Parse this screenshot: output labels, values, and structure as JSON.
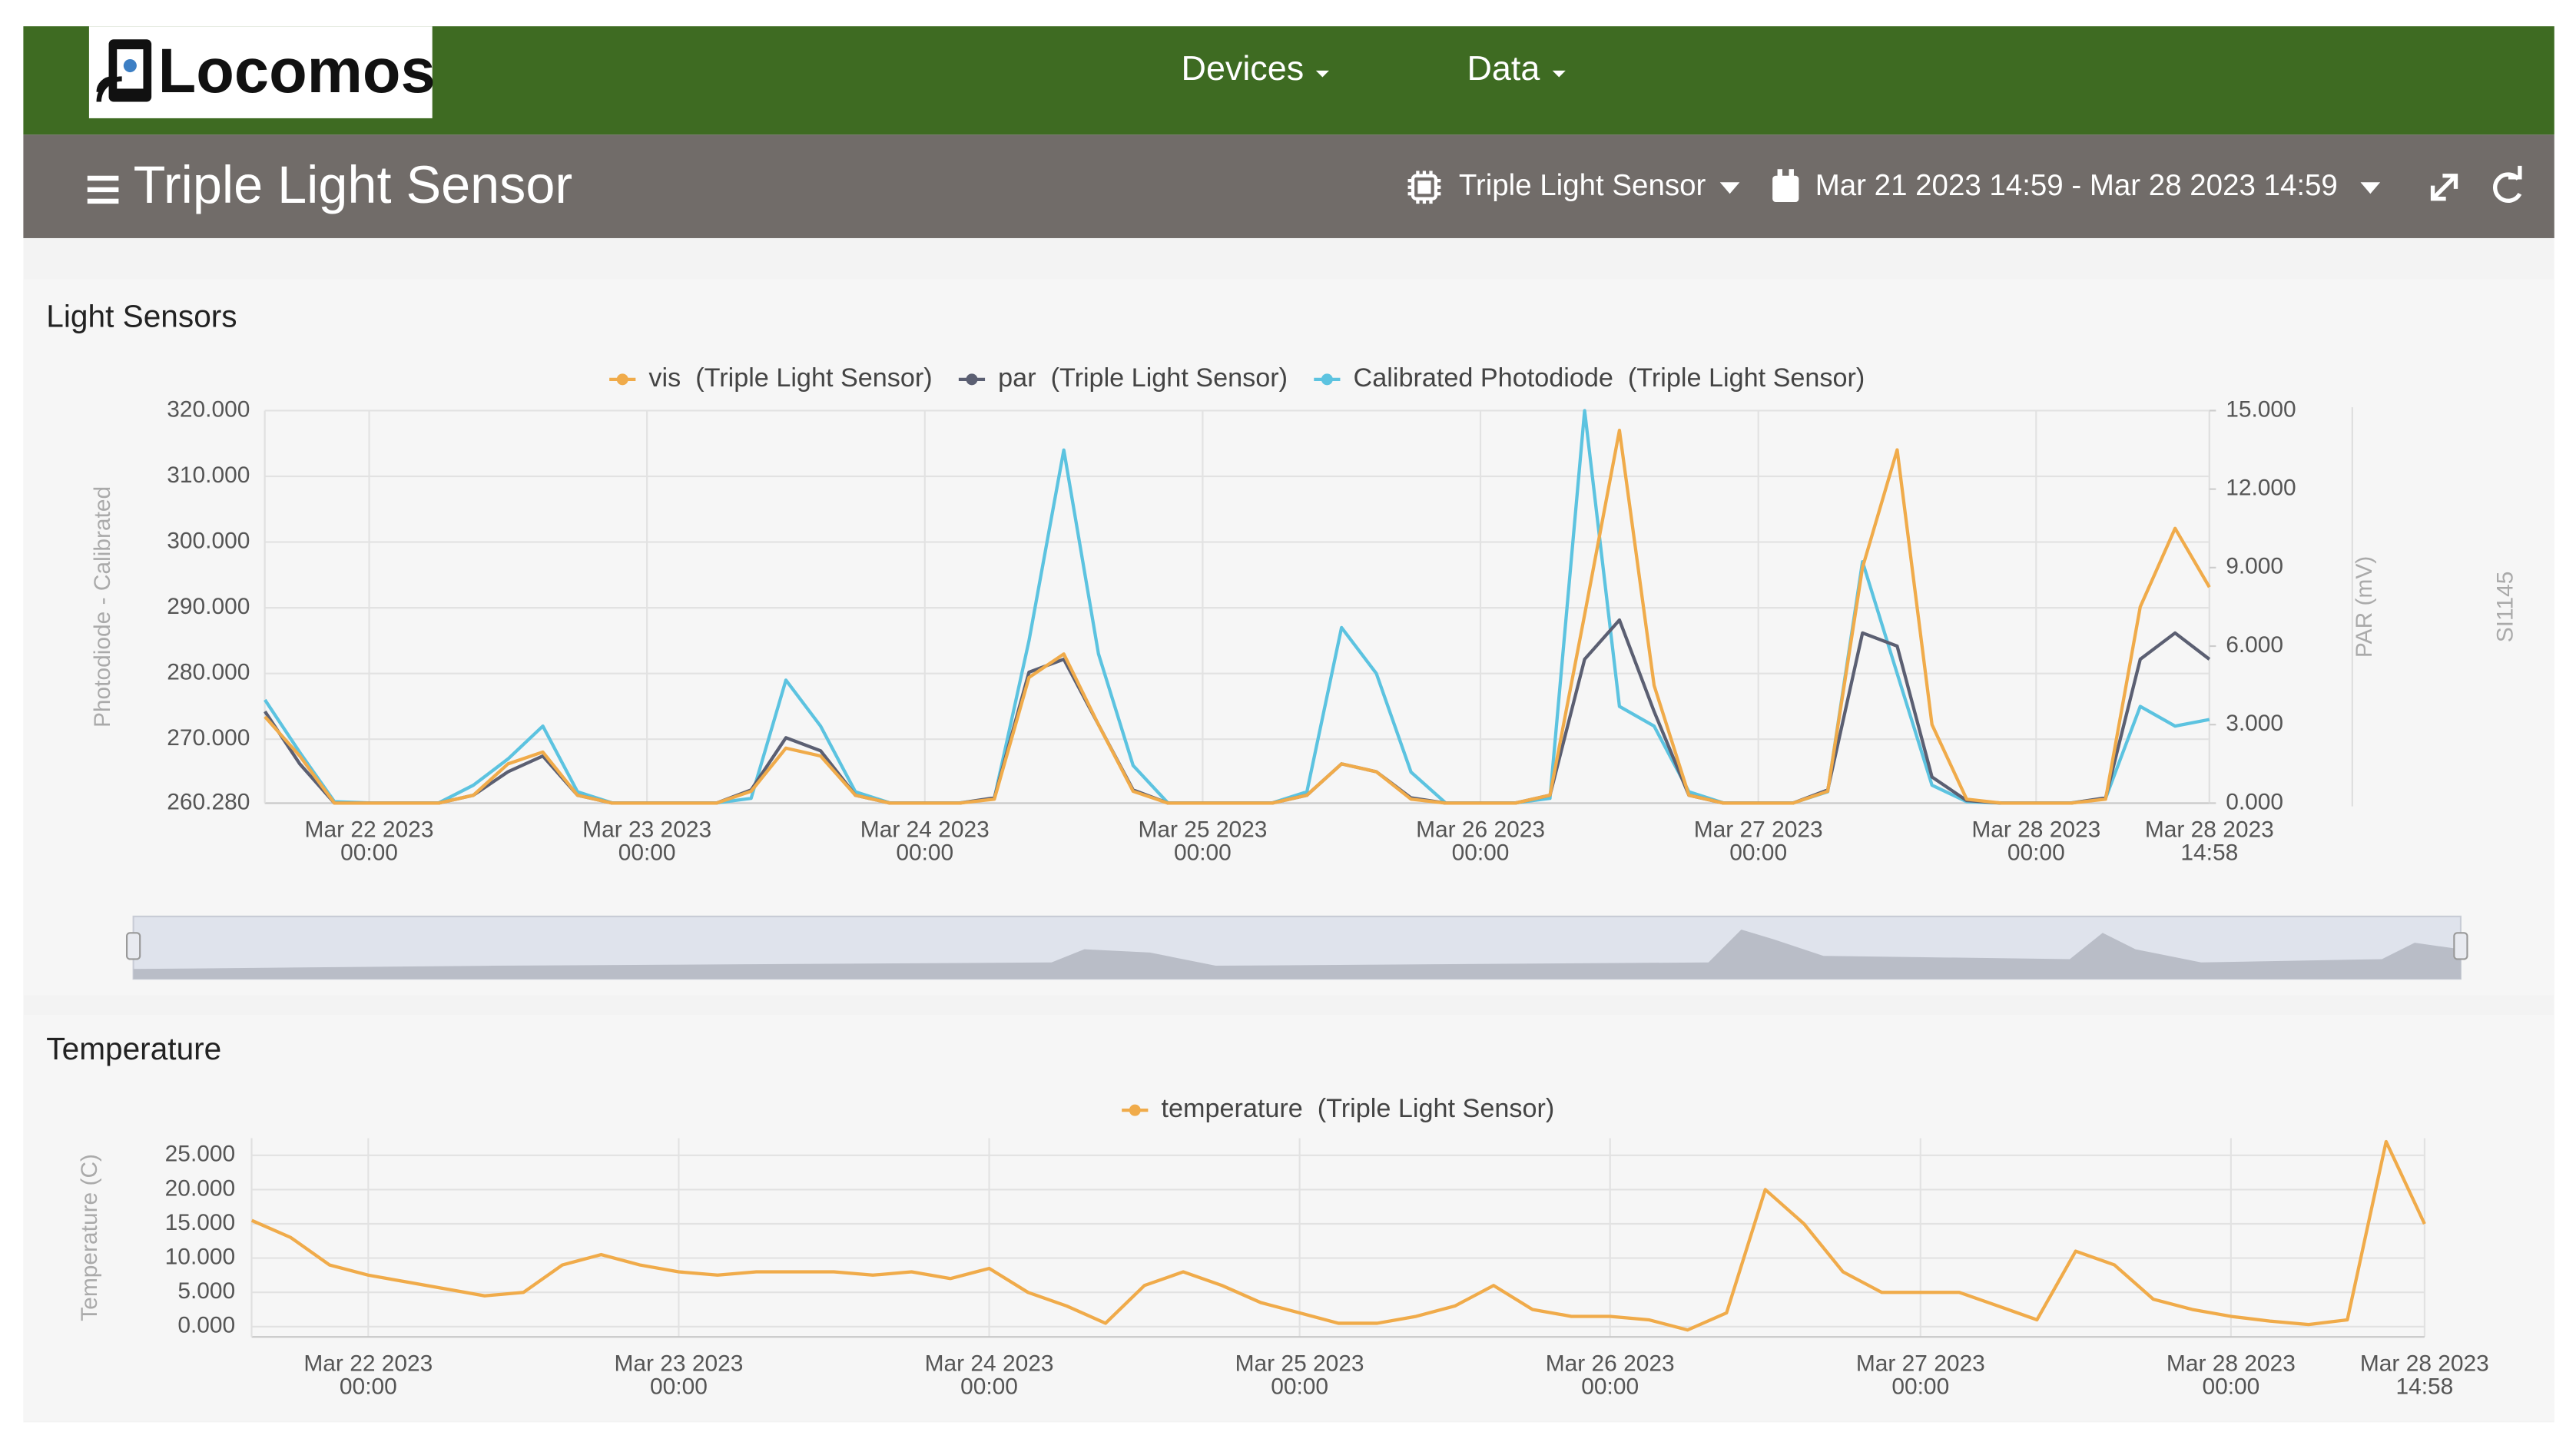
{
  "header": {
    "logo": "Locomos",
    "nav": [
      "Devices",
      "Data"
    ]
  },
  "toolbar": {
    "title": "Triple Light Sensor",
    "device": "Triple Light Sensor",
    "range": "Mar 21 2023 14:59 - Mar 28 2023 14:59"
  },
  "chart_data": [
    {
      "type": "line",
      "title": "Light Sensors",
      "ylabel": "Photodiode - Calibrated",
      "y2label": "PAR (mV)",
      "y3label": "SI1145",
      "grid": true,
      "x": [
        "2023-03-21T15:00",
        "2023-03-21T18:00",
        "2023-03-21T21:00",
        "2023-03-22T00:00",
        "2023-03-22T03:00",
        "2023-03-22T06:00",
        "2023-03-22T09:00",
        "2023-03-22T12:00",
        "2023-03-22T15:00",
        "2023-03-22T18:00",
        "2023-03-22T21:00",
        "2023-03-23T00:00",
        "2023-03-23T03:00",
        "2023-03-23T06:00",
        "2023-03-23T09:00",
        "2023-03-23T12:00",
        "2023-03-23T15:00",
        "2023-03-23T18:00",
        "2023-03-23T21:00",
        "2023-03-24T00:00",
        "2023-03-24T03:00",
        "2023-03-24T06:00",
        "2023-03-24T09:00",
        "2023-03-24T12:00",
        "2023-03-24T15:00",
        "2023-03-24T18:00",
        "2023-03-24T21:00",
        "2023-03-25T00:00",
        "2023-03-25T03:00",
        "2023-03-25T06:00",
        "2023-03-25T09:00",
        "2023-03-25T12:00",
        "2023-03-25T15:00",
        "2023-03-25T18:00",
        "2023-03-25T21:00",
        "2023-03-26T00:00",
        "2023-03-26T03:00",
        "2023-03-26T06:00",
        "2023-03-26T09:00",
        "2023-03-26T12:00",
        "2023-03-26T15:00",
        "2023-03-26T18:00",
        "2023-03-26T21:00",
        "2023-03-27T00:00",
        "2023-03-27T03:00",
        "2023-03-27T06:00",
        "2023-03-27T09:00",
        "2023-03-27T12:00",
        "2023-03-27T15:00",
        "2023-03-27T18:00",
        "2023-03-27T21:00",
        "2023-03-28T00:00",
        "2023-03-28T03:00",
        "2023-03-28T06:00",
        "2023-03-28T09:00",
        "2023-03-28T12:00",
        "2023-03-28T14:58"
      ],
      "xlim": [
        "2023-03-21T14:59",
        "2023-03-28T14:58"
      ],
      "xticks": [
        {
          "value": "2023-03-22T00:00",
          "label": [
            "Mar 22 2023",
            "00:00"
          ]
        },
        {
          "value": "2023-03-23T00:00",
          "label": [
            "Mar 23 2023",
            "00:00"
          ]
        },
        {
          "value": "2023-03-24T00:00",
          "label": [
            "Mar 24 2023",
            "00:00"
          ]
        },
        {
          "value": "2023-03-25T00:00",
          "label": [
            "Mar 25 2023",
            "00:00"
          ]
        },
        {
          "value": "2023-03-26T00:00",
          "label": [
            "Mar 26 2023",
            "00:00"
          ]
        },
        {
          "value": "2023-03-27T00:00",
          "label": [
            "Mar 27 2023",
            "00:00"
          ]
        },
        {
          "value": "2023-03-28T00:00",
          "label": [
            "Mar 28 2023",
            "00:00"
          ]
        },
        {
          "value": "2023-03-28T14:58",
          "label": [
            "Mar 28 2023",
            "14:58"
          ]
        }
      ],
      "ylim": [
        260.28,
        320
      ],
      "yticks": [
        {
          "value": 260.28,
          "label": "260.280"
        },
        {
          "value": 270,
          "label": "270.000"
        },
        {
          "value": 280,
          "label": "280.000"
        },
        {
          "value": 290,
          "label": "290.000"
        },
        {
          "value": 300,
          "label": "300.000"
        },
        {
          "value": 310,
          "label": "310.000"
        },
        {
          "value": 320,
          "label": "320.000"
        }
      ],
      "y2lim": [
        0,
        15
      ],
      "y2ticks": [
        {
          "value": 0,
          "label": "0.000"
        },
        {
          "value": 3,
          "label": "3.000"
        },
        {
          "value": 6,
          "label": "6.000"
        },
        {
          "value": 9,
          "label": "9.000"
        },
        {
          "value": 12,
          "label": "12.000"
        },
        {
          "value": 15,
          "label": "15.000"
        }
      ],
      "y3lim": [
        0,
        1000
      ],
      "series": [
        {
          "name": "vis  (Triple Light Sensor)",
          "color": "#f0ab4a",
          "axis": "y3",
          "values": [
            220,
            120,
            0,
            0,
            0,
            0,
            20,
            100,
            130,
            20,
            0,
            0,
            0,
            0,
            30,
            140,
            120,
            20,
            0,
            0,
            0,
            10,
            320,
            380,
            200,
            30,
            0,
            0,
            0,
            0,
            20,
            100,
            80,
            10,
            0,
            0,
            0,
            20,
            480,
            950,
            300,
            20,
            0,
            0,
            0,
            30,
            600,
            900,
            200,
            10,
            0,
            0,
            0,
            10,
            500,
            700,
            550
          ]
        },
        {
          "name": "par  (Triple Light Sensor)",
          "color": "#5b5f72",
          "axis": "y2",
          "values": [
            3.5,
            1.5,
            0,
            0,
            0,
            0,
            0.3,
            1.2,
            1.8,
            0.3,
            0,
            0,
            0,
            0,
            0.5,
            2.5,
            2.0,
            0.3,
            0,
            0,
            0,
            0.2,
            5.0,
            5.5,
            3.0,
            0.5,
            0,
            0,
            0,
            0,
            0.3,
            1.5,
            1.2,
            0.2,
            0,
            0,
            0,
            0.3,
            5.5,
            7.0,
            3.5,
            0.3,
            0,
            0,
            0,
            0.5,
            6.5,
            6.0,
            1.0,
            0.1,
            0,
            0,
            0,
            0.2,
            5.5,
            6.5,
            5.5
          ]
        },
        {
          "name": "Calibrated Photodiode  (Triple Light Sensor)",
          "color": "#5cc3e0",
          "values": [
            276,
            268,
            260.5,
            260.3,
            260.3,
            260.3,
            263,
            267,
            272,
            262,
            260.3,
            260.3,
            260.3,
            260.3,
            261,
            279,
            272,
            262,
            260.3,
            260.3,
            260.3,
            261,
            285,
            314,
            283,
            266,
            260.3,
            260.3,
            260.3,
            260.3,
            262,
            287,
            280,
            265,
            260.3,
            260.3,
            260.3,
            261,
            320,
            275,
            272,
            262,
            260.3,
            260.3,
            260.3,
            262,
            297,
            280,
            263,
            260.5,
            260.3,
            260.3,
            260.3,
            261,
            275,
            272,
            273
          ]
        }
      ]
    },
    {
      "type": "line",
      "title": "Temperature",
      "ylabel": "Temperature (C)",
      "grid": true,
      "x": [
        "2023-03-21T15:00",
        "2023-03-21T18:00",
        "2023-03-21T21:00",
        "2023-03-22T00:00",
        "2023-03-22T03:00",
        "2023-03-22T06:00",
        "2023-03-22T09:00",
        "2023-03-22T12:00",
        "2023-03-22T15:00",
        "2023-03-22T18:00",
        "2023-03-22T21:00",
        "2023-03-23T00:00",
        "2023-03-23T03:00",
        "2023-03-23T06:00",
        "2023-03-23T09:00",
        "2023-03-23T12:00",
        "2023-03-23T15:00",
        "2023-03-23T18:00",
        "2023-03-23T21:00",
        "2023-03-24T00:00",
        "2023-03-24T03:00",
        "2023-03-24T06:00",
        "2023-03-24T09:00",
        "2023-03-24T12:00",
        "2023-03-24T15:00",
        "2023-03-24T18:00",
        "2023-03-24T21:00",
        "2023-03-25T00:00",
        "2023-03-25T03:00",
        "2023-03-25T06:00",
        "2023-03-25T09:00",
        "2023-03-25T12:00",
        "2023-03-25T15:00",
        "2023-03-25T18:00",
        "2023-03-25T21:00",
        "2023-03-26T00:00",
        "2023-03-26T03:00",
        "2023-03-26T06:00",
        "2023-03-26T09:00",
        "2023-03-26T12:00",
        "2023-03-26T15:00",
        "2023-03-26T18:00",
        "2023-03-26T21:00",
        "2023-03-27T00:00",
        "2023-03-27T03:00",
        "2023-03-27T06:00",
        "2023-03-27T09:00",
        "2023-03-27T12:00",
        "2023-03-27T15:00",
        "2023-03-27T18:00",
        "2023-03-27T21:00",
        "2023-03-28T00:00",
        "2023-03-28T03:00",
        "2023-03-28T06:00",
        "2023-03-28T09:00",
        "2023-03-28T12:00",
        "2023-03-28T14:58"
      ],
      "xlim": [
        "2023-03-21T14:59",
        "2023-03-28T14:58"
      ],
      "xticks": [
        {
          "value": "2023-03-22T00:00",
          "label": [
            "Mar 22 2023",
            "00:00"
          ]
        },
        {
          "value": "2023-03-23T00:00",
          "label": [
            "Mar 23 2023",
            "00:00"
          ]
        },
        {
          "value": "2023-03-24T00:00",
          "label": [
            "Mar 24 2023",
            "00:00"
          ]
        },
        {
          "value": "2023-03-25T00:00",
          "label": [
            "Mar 25 2023",
            "00:00"
          ]
        },
        {
          "value": "2023-03-26T00:00",
          "label": [
            "Mar 26 2023",
            "00:00"
          ]
        },
        {
          "value": "2023-03-27T00:00",
          "label": [
            "Mar 27 2023",
            "00:00"
          ]
        },
        {
          "value": "2023-03-28T00:00",
          "label": [
            "Mar 28 2023",
            "00:00"
          ]
        },
        {
          "value": "2023-03-28T14:58",
          "label": [
            "Mar 28 2023",
            "14:58"
          ]
        }
      ],
      "ylim": [
        -1.5,
        27.5
      ],
      "yticks": [
        {
          "value": 0,
          "label": "0.000"
        },
        {
          "value": 5,
          "label": "5.000"
        },
        {
          "value": 10,
          "label": "10.000"
        },
        {
          "value": 15,
          "label": "15.000"
        },
        {
          "value": 20,
          "label": "20.000"
        },
        {
          "value": 25,
          "label": "25.000"
        }
      ],
      "series": [
        {
          "name": "temperature  (Triple Light Sensor)",
          "color": "#f0ab4a",
          "values": [
            15.5,
            13,
            9,
            7.5,
            6.5,
            5.5,
            4.5,
            5,
            9,
            10.5,
            9,
            8,
            7.5,
            8,
            8,
            8,
            7.5,
            8,
            7,
            8.5,
            5,
            3,
            0.5,
            6,
            8,
            6,
            3.5,
            2,
            0.5,
            0.5,
            1.5,
            3,
            6,
            2.5,
            1.5,
            1.5,
            1,
            -0.5,
            2,
            20,
            15,
            8,
            5,
            5,
            5,
            3,
            1,
            11,
            9,
            4,
            2.5,
            1.5,
            0.8,
            0.3,
            1,
            27,
            15
          ]
        }
      ]
    }
  ]
}
